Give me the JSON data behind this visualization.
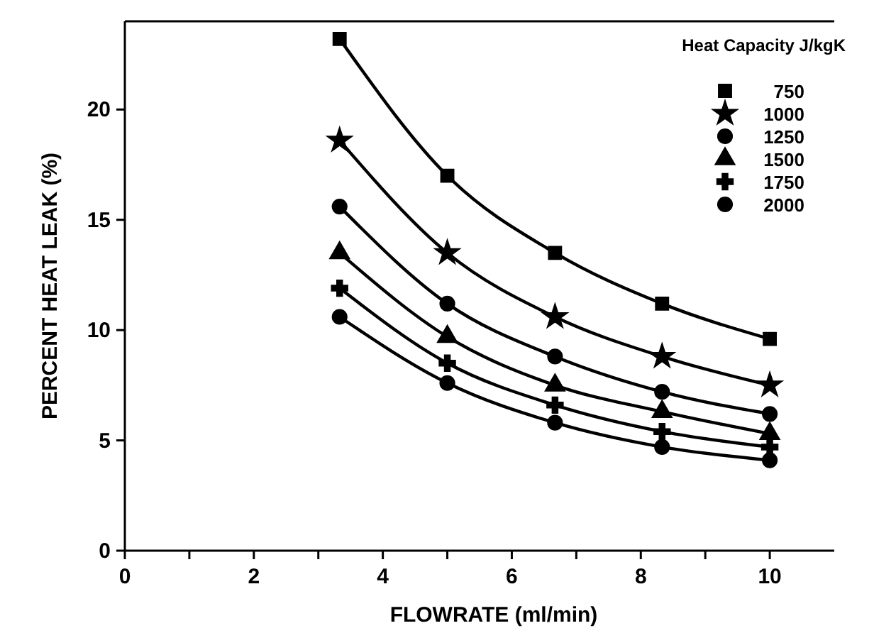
{
  "chart_data": {
    "type": "line",
    "xlabel": "FLOWRATE (ml/min)",
    "ylabel": "PERCENT HEAT LEAK (%)",
    "legend_title": "Heat Capacity J/kgK",
    "legend": "top right",
    "x": [
      3.33,
      5,
      6.67,
      8.33,
      10
    ],
    "xlim": [
      0,
      11
    ],
    "xticks": [
      0,
      {
        "value": 1,
        "label": null
      },
      2,
      {
        "value": 3,
        "label": null
      },
      4,
      {
        "value": 5,
        "label": null
      },
      6,
      {
        "value": 7,
        "label": null
      },
      8,
      {
        "value": 9,
        "label": null
      },
      10
    ],
    "ylim": [
      0,
      24
    ],
    "yticks": [
      0,
      5,
      10,
      15,
      20
    ],
    "grid": false,
    "line_style": "solid",
    "series": [
      {
        "name": "750",
        "color": "#000000",
        "marker": "square",
        "values": [
          23.2,
          17.0,
          13.5,
          11.2,
          9.6
        ]
      },
      {
        "name": "1000",
        "color": "#000000",
        "marker": "star",
        "values": [
          18.6,
          13.5,
          10.6,
          8.8,
          7.5
        ]
      },
      {
        "name": "1250",
        "color": "#000000",
        "marker": "circle",
        "values": [
          15.6,
          11.2,
          8.8,
          7.2,
          6.2
        ]
      },
      {
        "name": "1500",
        "color": "#000000",
        "marker": "triangle",
        "values": [
          13.5,
          9.7,
          7.5,
          6.3,
          5.3
        ]
      },
      {
        "name": "1750",
        "color": "#000000",
        "marker": "cross",
        "values": [
          11.9,
          8.5,
          6.6,
          5.4,
          4.7
        ]
      },
      {
        "name": "2000",
        "color": "#000000",
        "marker": "circle",
        "values": [
          10.6,
          7.6,
          5.8,
          4.7,
          4.1
        ]
      }
    ]
  }
}
